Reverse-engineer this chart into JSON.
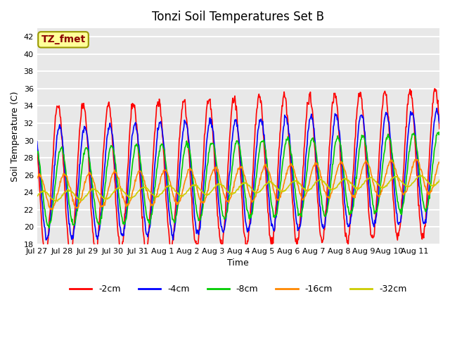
{
  "title": "Tonzi Soil Temperatures Set B",
  "xlabel": "Time",
  "ylabel": "Soil Temperature (C)",
  "ylim": [
    18,
    43
  ],
  "n_days": 16,
  "background_color": "#e8e8e8",
  "grid_color": "white",
  "annotation_text": "TZ_fmet",
  "annotation_color": "#8b0000",
  "annotation_bg": "#ffff99",
  "annotation_border": "#999900",
  "series_names": [
    "-2cm",
    "-4cm",
    "-8cm",
    "-16cm",
    "-32cm"
  ],
  "series_colors": [
    "#ff0000",
    "#0000ff",
    "#00cc00",
    "#ff8800",
    "#cccc00"
  ],
  "series_amps": [
    8.5,
    6.5,
    4.5,
    2.0,
    0.6
  ],
  "series_lags": [
    0.0,
    1.5,
    3.0,
    6.0,
    10.0
  ],
  "series_offsets": [
    0.0,
    -0.5,
    -1.0,
    -1.5,
    -2.0
  ],
  "xtick_positions": [
    0,
    1,
    2,
    3,
    4,
    5,
    6,
    7,
    8,
    9,
    10,
    11,
    12,
    13,
    14,
    15,
    16
  ],
  "xtick_labels": [
    "Jul 27",
    "Jul 28",
    "Jul 29",
    "Jul 30",
    "Jul 31",
    "Aug 1",
    "Aug 2",
    "Aug 3",
    "Aug 4",
    "Aug 5",
    "Aug 6",
    "Aug 7",
    "Aug 8",
    "Aug 9",
    "Aug 10",
    "Aug 11",
    ""
  ],
  "ytick_positions": [
    18,
    20,
    22,
    24,
    26,
    28,
    30,
    32,
    34,
    36,
    38,
    40,
    42
  ],
  "legend_entries": [
    "-2cm",
    "-4cm",
    "-8cm",
    "-16cm",
    "-32cm"
  ],
  "legend_colors": [
    "#ff0000",
    "#0000ff",
    "#00cc00",
    "#ff8800",
    "#cccc00"
  ]
}
